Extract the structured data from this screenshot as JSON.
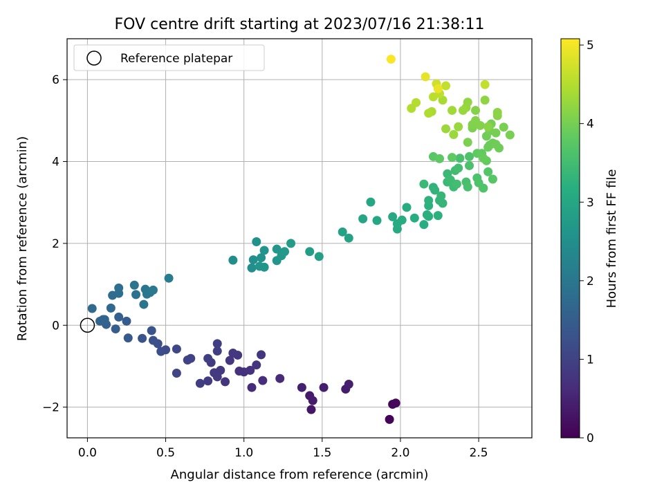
{
  "chart_data": {
    "type": "scatter",
    "title": "FOV centre drift starting at 2023/07/16 21:38:11",
    "xlabel": "Angular distance from reference (arcmin)",
    "ylabel": "Rotation from reference (arcmin)",
    "colorbar_label": "Hours from first FF file",
    "colormap": "viridis",
    "xlim": [
      -0.13,
      2.84
    ],
    "ylim": [
      -2.75,
      7.0
    ],
    "clim": [
      0,
      5.08
    ],
    "x_ticks": [
      "0.0",
      "0.5",
      "1.0",
      "1.5",
      "2.0",
      "2.5"
    ],
    "x_tick_values": [
      0,
      0.5,
      1.0,
      1.5,
      2.0,
      2.5
    ],
    "y_ticks": [
      "−2",
      "0",
      "2",
      "4",
      "6"
    ],
    "y_tick_values": [
      -2,
      0,
      2,
      4,
      6
    ],
    "colorbar_ticks": [
      "0",
      "1",
      "2",
      "3",
      "4",
      "5"
    ],
    "colorbar_tick_values": [
      0,
      1,
      2,
      3,
      4,
      5
    ],
    "grid": true,
    "legend": {
      "position": "upper-left",
      "entries": [
        {
          "label": "Reference platepar",
          "marker": "open-circle",
          "x": 0,
          "y": 0
        }
      ]
    },
    "points": [
      [
        1.93,
        -2.3,
        0.05
      ],
      [
        1.95,
        -1.93,
        0.1
      ],
      [
        1.97,
        -1.9,
        0.12
      ],
      [
        1.43,
        -2.06,
        0.3
      ],
      [
        1.42,
        -1.72,
        0.35
      ],
      [
        1.44,
        -1.84,
        0.38
      ],
      [
        1.37,
        -1.52,
        0.45
      ],
      [
        1.51,
        -1.52,
        0.42
      ],
      [
        1.65,
        -1.56,
        0.4
      ],
      [
        1.67,
        -1.44,
        0.44
      ],
      [
        1.23,
        -1.3,
        0.6
      ],
      [
        1.12,
        -1.35,
        0.65
      ],
      [
        1.05,
        -1.52,
        0.62
      ],
      [
        0.97,
        -1.12,
        0.7
      ],
      [
        1.0,
        -1.14,
        0.72
      ],
      [
        1.04,
        -1.1,
        0.73
      ],
      [
        1.08,
        -0.97,
        0.75
      ],
      [
        1.11,
        -0.72,
        0.78
      ],
      [
        0.96,
        -0.73,
        0.8
      ],
      [
        0.93,
        -0.68,
        0.82
      ],
      [
        0.91,
        -0.86,
        0.8
      ],
      [
        0.88,
        -1.38,
        0.75
      ],
      [
        0.85,
        -1.1,
        0.82
      ],
      [
        0.83,
        -1.26,
        0.85
      ],
      [
        0.81,
        -1.16,
        0.86
      ],
      [
        0.79,
        -0.91,
        0.88
      ],
      [
        0.77,
        -1.36,
        0.87
      ],
      [
        0.83,
        -0.63,
        0.92
      ],
      [
        0.83,
        -0.45,
        0.95
      ],
      [
        0.77,
        -0.81,
        0.95
      ],
      [
        0.72,
        -1.42,
        0.9
      ],
      [
        0.66,
        -0.81,
        1.0
      ],
      [
        0.64,
        -0.85,
        1.02
      ],
      [
        0.57,
        -1.17,
        1.05
      ],
      [
        0.57,
        -0.58,
        1.1
      ],
      [
        0.5,
        -0.6,
        1.15
      ],
      [
        0.47,
        -0.64,
        1.18
      ],
      [
        0.45,
        -0.45,
        1.22
      ],
      [
        0.42,
        -0.37,
        1.25
      ],
      [
        0.41,
        -0.13,
        1.3
      ],
      [
        0.35,
        -0.32,
        1.3
      ],
      [
        0.26,
        -0.31,
        1.42
      ],
      [
        0.25,
        0.1,
        1.45
      ],
      [
        0.2,
        0.2,
        1.52
      ],
      [
        0.18,
        -0.09,
        1.5
      ],
      [
        0.12,
        0.02,
        1.58
      ],
      [
        0.1,
        0.14,
        1.6
      ],
      [
        0.08,
        0.1,
        1.62
      ],
      [
        0.11,
        0.14,
        1.65
      ],
      [
        0.15,
        0.42,
        1.72
      ],
      [
        0.16,
        0.73,
        1.78
      ],
      [
        0.2,
        0.78,
        1.8
      ],
      [
        0.2,
        0.91,
        1.82
      ],
      [
        0.03,
        0.41,
        1.75
      ],
      [
        0.31,
        0.75,
        1.9
      ],
      [
        0.3,
        0.98,
        1.93
      ],
      [
        0.36,
        0.51,
        1.95
      ],
      [
        0.37,
        0.88,
        1.98
      ],
      [
        0.38,
        0.76,
        2.0
      ],
      [
        0.4,
        0.8,
        2.02
      ],
      [
        0.42,
        0.86,
        2.04
      ],
      [
        0.52,
        1.15,
        2.1
      ],
      [
        0.93,
        1.59,
        2.45
      ],
      [
        1.05,
        1.4,
        2.5
      ],
      [
        1.06,
        1.6,
        2.52
      ],
      [
        1.08,
        2.04,
        2.55
      ],
      [
        1.11,
        1.65,
        2.58
      ],
      [
        1.13,
        1.83,
        2.6
      ],
      [
        1.1,
        1.44,
        2.6
      ],
      [
        1.13,
        1.42,
        2.62
      ],
      [
        1.21,
        1.58,
        2.66
      ],
      [
        1.21,
        1.86,
        2.68
      ],
      [
        1.24,
        1.7,
        2.7
      ],
      [
        1.26,
        1.8,
        2.72
      ],
      [
        1.3,
        2.0,
        2.75
      ],
      [
        1.42,
        1.8,
        2.8
      ],
      [
        1.48,
        1.68,
        2.82
      ],
      [
        1.63,
        2.28,
        2.9
      ],
      [
        1.67,
        2.13,
        2.92
      ],
      [
        1.76,
        2.6,
        2.98
      ],
      [
        1.81,
        3.01,
        3.0
      ],
      [
        1.85,
        2.56,
        3.02
      ],
      [
        1.95,
        2.65,
        3.05
      ],
      [
        1.98,
        2.35,
        3.08
      ],
      [
        1.98,
        2.48,
        3.1
      ],
      [
        2.01,
        2.57,
        3.1
      ],
      [
        2.04,
        2.88,
        3.12
      ],
      [
        2.09,
        2.62,
        3.14
      ],
      [
        2.15,
        2.46,
        3.15
      ],
      [
        2.17,
        2.7,
        3.18
      ],
      [
        2.18,
        2.66,
        3.2
      ],
      [
        2.18,
        2.92,
        3.22
      ],
      [
        2.18,
        3.05,
        3.25
      ],
      [
        2.21,
        3.37,
        3.28
      ],
      [
        2.22,
        3.3,
        3.3
      ],
      [
        2.24,
        2.68,
        3.22
      ],
      [
        2.25,
        3.05,
        3.32
      ],
      [
        2.26,
        3.16,
        3.35
      ],
      [
        2.27,
        2.98,
        3.35
      ],
      [
        2.3,
        3.7,
        3.4
      ],
      [
        2.3,
        3.5,
        3.42
      ],
      [
        2.32,
        3.55,
        3.45
      ],
      [
        2.34,
        3.38,
        3.45
      ],
      [
        2.35,
        3.78,
        3.48
      ],
      [
        2.36,
        3.45,
        3.5
      ],
      [
        2.37,
        3.84,
        3.52
      ],
      [
        2.15,
        3.45,
        3.4
      ],
      [
        2.38,
        4.08,
        3.55
      ],
      [
        2.42,
        3.5,
        3.55
      ],
      [
        2.43,
        3.38,
        3.58
      ],
      [
        2.44,
        3.9,
        3.6
      ],
      [
        2.44,
        4.12,
        3.62
      ],
      [
        2.49,
        3.6,
        3.62
      ],
      [
        2.5,
        3.48,
        3.65
      ],
      [
        2.53,
        3.35,
        3.65
      ],
      [
        2.56,
        3.75,
        3.7
      ],
      [
        2.59,
        3.57,
        3.72
      ],
      [
        2.21,
        4.12,
        3.75
      ],
      [
        2.25,
        4.07,
        3.78
      ],
      [
        2.33,
        4.1,
        3.8
      ],
      [
        2.49,
        4.2,
        3.82
      ],
      [
        2.52,
        4.2,
        3.85
      ],
      [
        2.55,
        4.02,
        3.85
      ],
      [
        2.53,
        4.08,
        3.88
      ],
      [
        2.56,
        4.35,
        3.9
      ],
      [
        2.57,
        4.4,
        3.92
      ],
      [
        2.59,
        4.45,
        3.92
      ],
      [
        2.61,
        4.42,
        3.95
      ],
      [
        2.63,
        4.33,
        3.95
      ],
      [
        2.55,
        4.62,
        3.95
      ],
      [
        2.57,
        4.75,
        3.98
      ],
      [
        2.58,
        4.92,
        4.0
      ],
      [
        2.61,
        4.7,
        4.0
      ],
      [
        2.66,
        4.84,
        4.02
      ],
      [
        2.7,
        4.65,
        4.02
      ],
      [
        2.43,
        4.47,
        4.05
      ],
      [
        2.46,
        4.82,
        4.05
      ],
      [
        2.46,
        4.9,
        4.08
      ],
      [
        2.48,
        5.0,
        4.1
      ],
      [
        2.48,
        5.25,
        4.12
      ],
      [
        2.51,
        4.88,
        4.12
      ],
      [
        2.56,
        4.85,
        4.15
      ],
      [
        2.62,
        5.12,
        4.15
      ],
      [
        2.62,
        5.2,
        4.18
      ],
      [
        2.54,
        5.5,
        4.2
      ],
      [
        2.43,
        5.45,
        4.22
      ],
      [
        2.42,
        5.32,
        4.25
      ],
      [
        2.4,
        5.25,
        4.28
      ],
      [
        2.37,
        4.85,
        4.28
      ],
      [
        2.34,
        4.66,
        4.3
      ],
      [
        2.29,
        4.8,
        4.32
      ],
      [
        2.33,
        5.25,
        4.35
      ],
      [
        2.27,
        5.5,
        4.4
      ],
      [
        2.2,
        5.22,
        4.42
      ],
      [
        2.18,
        5.18,
        4.45
      ],
      [
        2.07,
        5.3,
        4.48
      ],
      [
        2.1,
        5.44,
        4.5
      ],
      [
        2.21,
        5.58,
        4.55
      ],
      [
        2.25,
        5.66,
        4.58
      ],
      [
        2.29,
        5.85,
        4.6
      ],
      [
        2.54,
        5.88,
        4.6
      ],
      [
        2.23,
        5.9,
        4.7
      ],
      [
        2.16,
        6.07,
        4.9
      ],
      [
        2.24,
        5.78,
        4.92
      ],
      [
        1.94,
        6.5,
        5.05
      ]
    ]
  }
}
